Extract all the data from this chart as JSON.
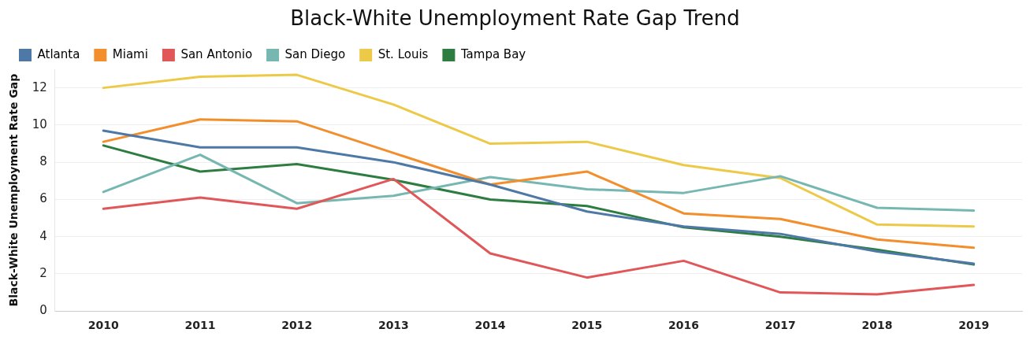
{
  "chart_data": {
    "type": "line",
    "title": "Black-White Unemployment Rate Gap Trend",
    "ylabel": "Black-White Unemployment Rate Gap",
    "categories": [
      "2010",
      "2011",
      "2012",
      "2013",
      "2014",
      "2015",
      "2016",
      "2017",
      "2018",
      "2019"
    ],
    "series": [
      {
        "name": "Atlanta",
        "color": "#4e79a7",
        "values": [
          9.7,
          8.8,
          8.8,
          8.0,
          6.8,
          5.35,
          4.55,
          4.15,
          3.2,
          2.55
        ]
      },
      {
        "name": "Miami",
        "color": "#f28e2b",
        "values": [
          9.1,
          10.3,
          10.2,
          8.5,
          6.8,
          7.5,
          5.25,
          4.95,
          3.85,
          3.4
        ]
      },
      {
        "name": "San Antonio",
        "color": "#e15759",
        "values": [
          5.5,
          6.1,
          5.5,
          7.1,
          3.1,
          1.8,
          2.7,
          1.0,
          0.9,
          1.4
        ]
      },
      {
        "name": "San Diego",
        "color": "#76b7b2",
        "values": [
          6.4,
          8.4,
          5.8,
          6.2,
          7.2,
          6.55,
          6.35,
          7.25,
          5.55,
          5.4
        ]
      },
      {
        "name": "St. Louis",
        "color": "#edc948",
        "values": [
          12.0,
          12.6,
          12.7,
          11.1,
          9.0,
          9.1,
          7.85,
          7.15,
          4.65,
          4.55
        ]
      },
      {
        "name": "Tampa Bay",
        "color": "#2e7d40",
        "values": [
          8.9,
          7.5,
          7.9,
          7.05,
          6.0,
          5.65,
          4.5,
          4.0,
          3.3,
          2.5
        ]
      }
    ],
    "ylim": [
      0,
      13
    ],
    "yticks": [
      0,
      2,
      4,
      6,
      8,
      10,
      12
    ],
    "grid": "y",
    "legend": "top",
    "marker": "none",
    "line_style": "solid"
  }
}
